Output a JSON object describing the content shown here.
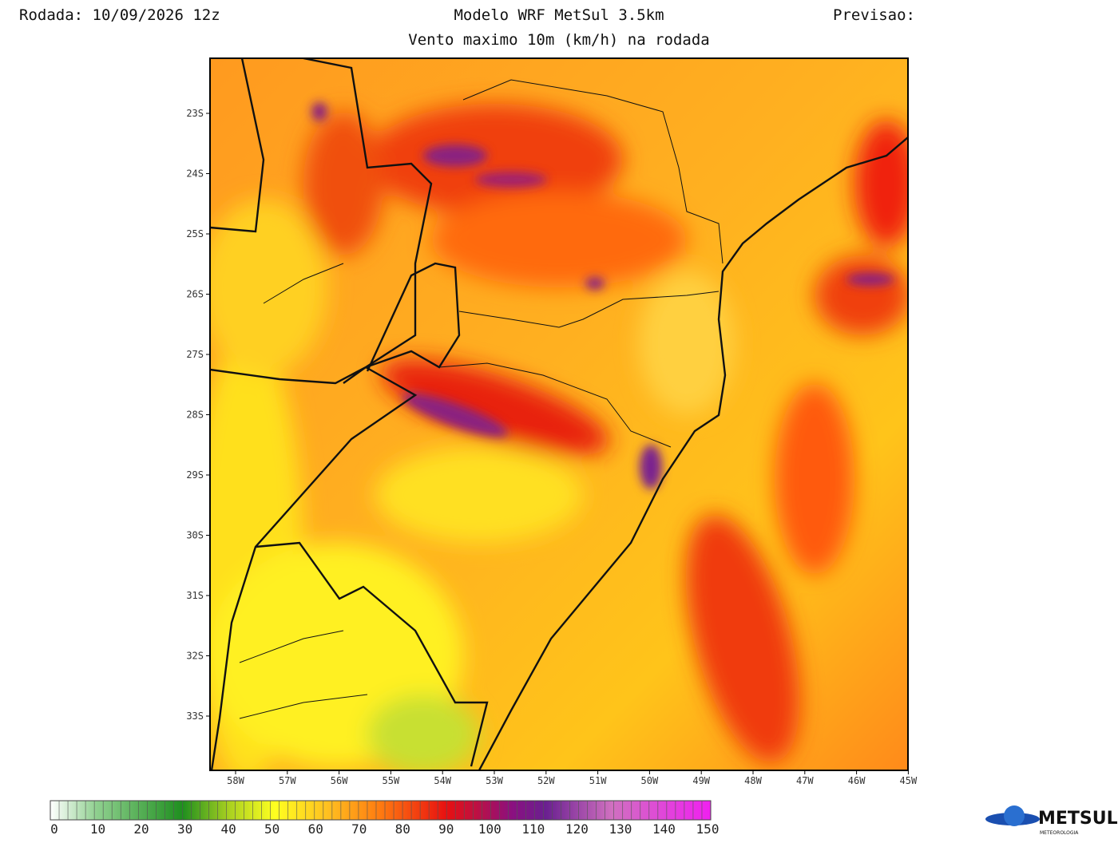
{
  "header": {
    "run": "Rodada: 10/09/2026 12z",
    "model": "Modelo WRF MetSul 3.5km",
    "forecast": "Previsao:",
    "subtitle": "Vento maximo 10m (km/h) na rodada"
  },
  "map": {
    "lat_labels": [
      "23S",
      "24S",
      "25S",
      "26S",
      "27S",
      "28S",
      "29S",
      "30S",
      "31S",
      "32S",
      "33S"
    ],
    "lon_labels": [
      "58W",
      "57W",
      "56W",
      "55W",
      "54W",
      "53W",
      "52W",
      "51W",
      "50W",
      "49W",
      "48W",
      "47W",
      "46W",
      "45W"
    ]
  },
  "colorbar": {
    "labels": [
      0,
      10,
      20,
      30,
      40,
      50,
      60,
      70,
      80,
      90,
      100,
      110,
      120,
      130,
      140,
      150
    ]
  },
  "logo": {
    "name": "METSUL",
    "tagline": "METEOROLOGIA"
  }
}
